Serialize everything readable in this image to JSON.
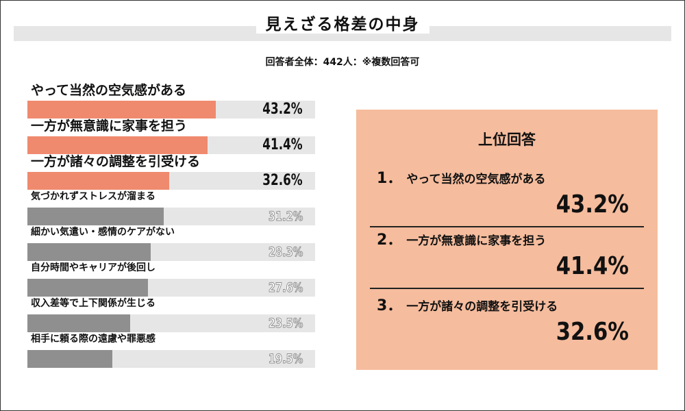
{
  "header": {
    "title": "見えざる格差の中身",
    "subtitle": "回答者全体：442人：※複数回答可"
  },
  "chart_data": {
    "type": "bar",
    "orientation": "horizontal",
    "title": "見えざる格差の中身",
    "subtitle": "回答者全体：442人：※複数回答可",
    "categories": [
      "やって当然の空気感がある",
      "一方が無意識に家事を担う",
      "一方が諸々の調整を引受ける",
      "気づかれずストレスが溜まる",
      "細かい気遣い・感情のケアがない",
      "自分時間やキャリアが後回し",
      "収入差等で上下関係が生じる",
      "相手に頼る際の遠慮や罪悪感"
    ],
    "values": [
      43.2,
      41.4,
      32.6,
      31.2,
      28.3,
      27.6,
      23.5,
      19.5
    ],
    "value_labels": [
      "43.2%",
      "41.4%",
      "32.6%",
      "31.2%",
      "28.3%",
      "27.6%",
      "23.5%",
      "19.5%"
    ],
    "unit": "%",
    "xlim": [
      0,
      66
    ],
    "highlight_top_n": 3,
    "colors": {
      "highlight": "#ef8a6e",
      "normal": "#8f8f8f",
      "track": "#e6e6e6"
    }
  },
  "ranking_box": {
    "title": "上位回答",
    "items": [
      {
        "rank": "1．",
        "label": "やって当然の空気感がある",
        "value": "43.2%"
      },
      {
        "rank": "2．",
        "label": "一方が無意識に家事を担う",
        "value": "41.4%"
      },
      {
        "rank": "3．",
        "label": "一方が諸々の調整を引受ける",
        "value": "32.6%"
      }
    ],
    "background_color": "#f5bc9d"
  }
}
